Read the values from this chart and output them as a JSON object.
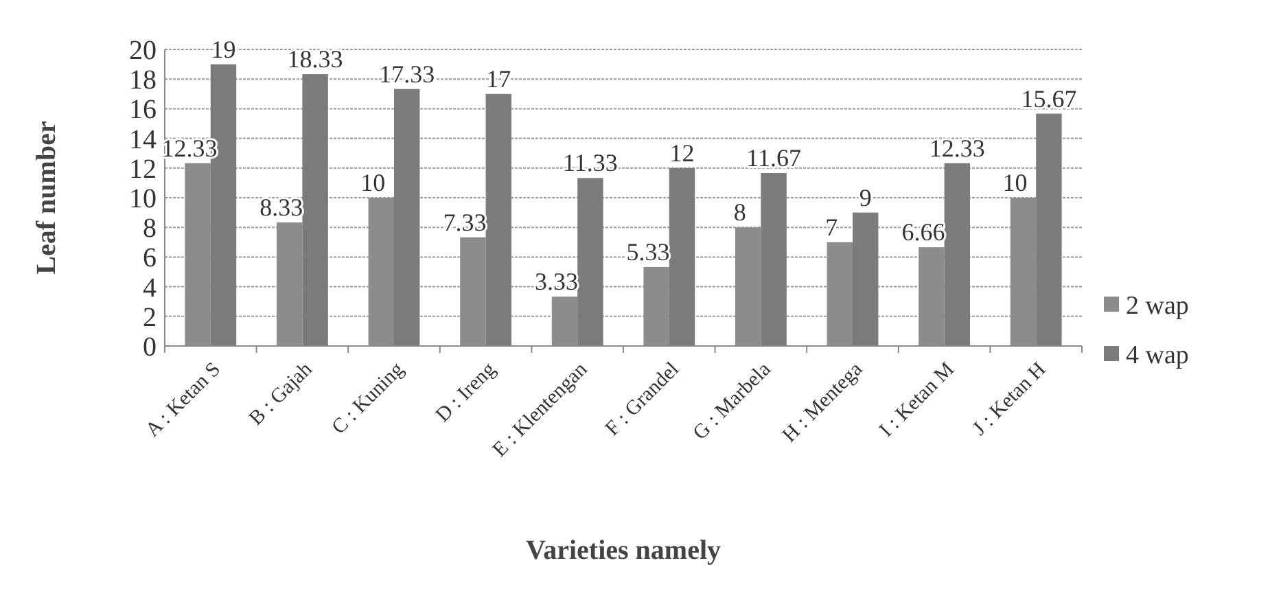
{
  "chart_data": {
    "type": "bar",
    "xlabel": "Varieties namely",
    "ylabel": "Leaf number",
    "categories": [
      "A : Ketan S",
      "B : Gajah",
      "C : Kuning",
      "D : Ireng",
      "E : Klentengan",
      "F : Grandel",
      "G : Marbela",
      "H : Mentega",
      "I  : Ketan M",
      "J : Ketan H"
    ],
    "series": [
      {
        "name": "2 wap",
        "color": "#8c8c8c",
        "values": [
          12.33,
          8.33,
          10,
          7.33,
          3.33,
          5.33,
          8,
          7,
          6.66,
          10
        ]
      },
      {
        "name": "4 wap",
        "color": "#7b7b7b",
        "values": [
          19,
          18.33,
          17.33,
          17,
          11.33,
          12,
          11.67,
          9,
          12.33,
          15.67
        ]
      }
    ],
    "ylim": [
      0,
      20
    ],
    "yticks": [
      0,
      2,
      4,
      6,
      8,
      10,
      12,
      14,
      16,
      18,
      20
    ],
    "grid": "y",
    "legend": "right",
    "data_labels": true
  }
}
